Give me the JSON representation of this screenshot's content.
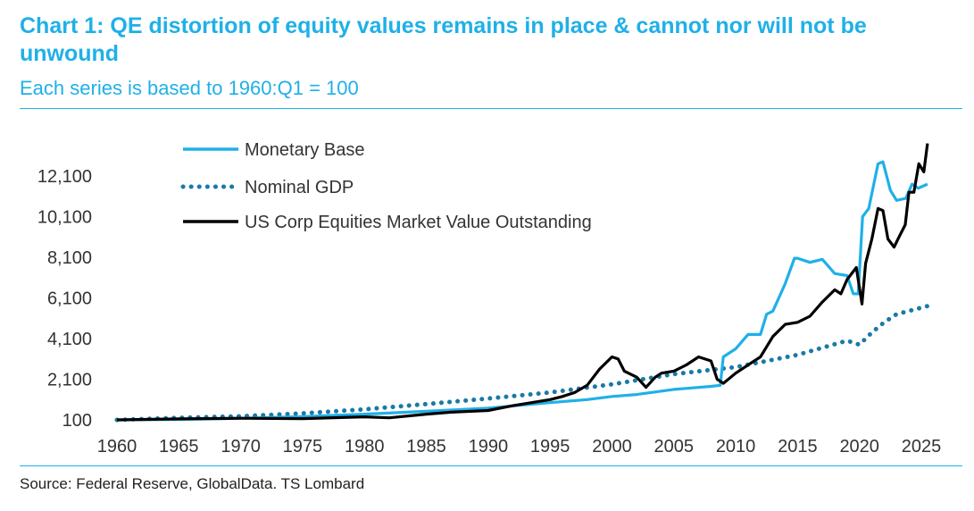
{
  "title": "Chart 1: QE distortion of equity values remains in place & cannot nor will not be unwound",
  "subtitle": "Each series is based to 1960:Q1 = 100",
  "source": "Source: Federal Reserve, GlobalData. TS Lombard",
  "colors": {
    "monetary_base": "#1fb0e8",
    "nominal_gdp": "#1a7aa6",
    "equities": "#000000"
  },
  "chart_data": {
    "type": "line",
    "title": "Chart 1: QE distortion of equity values remains in place & cannot nor will not be unwound",
    "subtitle": "Each series is based to 1960:Q1 = 100",
    "xlabel": "",
    "ylabel": "",
    "xlim": [
      1960,
      2025
    ],
    "ylim": [
      100,
      12100
    ],
    "x_ticks": [
      1960,
      1965,
      1970,
      1975,
      1980,
      1985,
      1990,
      1995,
      2000,
      2005,
      2010,
      2015,
      2020,
      2025
    ],
    "y_ticks": [
      100,
      2100,
      4100,
      6100,
      8100,
      10100,
      12100
    ],
    "x_tick_labels": [
      "1960",
      "1965",
      "1970",
      "1975",
      "1980",
      "1985",
      "1990",
      "1995",
      "2000",
      "2005",
      "2010",
      "2015",
      "2020",
      "2025"
    ],
    "y_tick_labels": [
      "100",
      "2,100",
      "4,100",
      "6,100",
      "8,100",
      "10,100",
      "12,100"
    ],
    "legend_position": "top-left",
    "series": [
      {
        "name": "Monetary Base",
        "style": "solid",
        "points": [
          [
            1960,
            100
          ],
          [
            1965,
            120
          ],
          [
            1970,
            180
          ],
          [
            1975,
            260
          ],
          [
            1980,
            380
          ],
          [
            1985,
            520
          ],
          [
            1990,
            680
          ],
          [
            1995,
            950
          ],
          [
            1998,
            1100
          ],
          [
            2000,
            1250
          ],
          [
            2002,
            1350
          ],
          [
            2005,
            1600
          ],
          [
            2008,
            1750
          ],
          [
            2008.75,
            1800
          ],
          [
            2009,
            3200
          ],
          [
            2010,
            3600
          ],
          [
            2011,
            4300
          ],
          [
            2012,
            4300
          ],
          [
            2012.5,
            5300
          ],
          [
            2013,
            5450
          ],
          [
            2014,
            6800
          ],
          [
            2014.75,
            8050
          ],
          [
            2015,
            8050
          ],
          [
            2016,
            7850
          ],
          [
            2017,
            8000
          ],
          [
            2018,
            7300
          ],
          [
            2019,
            7200
          ],
          [
            2019.5,
            6300
          ],
          [
            2019.9,
            6300
          ],
          [
            2020.25,
            10100
          ],
          [
            2020.75,
            10500
          ],
          [
            2021.5,
            12700
          ],
          [
            2021.9,
            12800
          ],
          [
            2022.5,
            11400
          ],
          [
            2023,
            10900
          ],
          [
            2023.75,
            11000
          ],
          [
            2024.25,
            11700
          ],
          [
            2024.75,
            11500
          ],
          [
            2025.5,
            11700
          ]
        ]
      },
      {
        "name": "Nominal GDP",
        "style": "dotted",
        "points": [
          [
            1960,
            100
          ],
          [
            1965,
            200
          ],
          [
            1970,
            280
          ],
          [
            1975,
            420
          ],
          [
            1980,
            620
          ],
          [
            1985,
            880
          ],
          [
            1990,
            1150
          ],
          [
            1995,
            1450
          ],
          [
            2000,
            1850
          ],
          [
            2005,
            2350
          ],
          [
            2010,
            2700
          ],
          [
            2015,
            3300
          ],
          [
            2019,
            4000
          ],
          [
            2020,
            3800
          ],
          [
            2021,
            4400
          ],
          [
            2022,
            4900
          ],
          [
            2023,
            5300
          ],
          [
            2025.5,
            5700
          ]
        ]
      },
      {
        "name": "US Corp Equities Market Value Outstanding",
        "style": "solid",
        "points": [
          [
            1960,
            100
          ],
          [
            1965,
            150
          ],
          [
            1970,
            180
          ],
          [
            1975,
            160
          ],
          [
            1980,
            250
          ],
          [
            1982,
            200
          ],
          [
            1985,
            380
          ],
          [
            1987,
            480
          ],
          [
            1990,
            560
          ],
          [
            1992,
            800
          ],
          [
            1995,
            1100
          ],
          [
            1996,
            1250
          ],
          [
            1997,
            1450
          ],
          [
            1998,
            1800
          ],
          [
            1999,
            2600
          ],
          [
            2000,
            3200
          ],
          [
            2000.5,
            3100
          ],
          [
            2001,
            2500
          ],
          [
            2002,
            2200
          ],
          [
            2002.75,
            1700
          ],
          [
            2003.5,
            2200
          ],
          [
            2004,
            2400
          ],
          [
            2005,
            2500
          ],
          [
            2006,
            2800
          ],
          [
            2007,
            3200
          ],
          [
            2008,
            3000
          ],
          [
            2008.5,
            2100
          ],
          [
            2009,
            1900
          ],
          [
            2010,
            2400
          ],
          [
            2011,
            2800
          ],
          [
            2012,
            3200
          ],
          [
            2013,
            4200
          ],
          [
            2014,
            4800
          ],
          [
            2015,
            4900
          ],
          [
            2016,
            5200
          ],
          [
            2017,
            5900
          ],
          [
            2018,
            6500
          ],
          [
            2018.5,
            6300
          ],
          [
            2019,
            7000
          ],
          [
            2019.75,
            7600
          ],
          [
            2020.2,
            5800
          ],
          [
            2020.5,
            7800
          ],
          [
            2021,
            9000
          ],
          [
            2021.5,
            10500
          ],
          [
            2021.9,
            10400
          ],
          [
            2022.3,
            9000
          ],
          [
            2022.8,
            8600
          ],
          [
            2023.2,
            9100
          ],
          [
            2023.7,
            9700
          ],
          [
            2024,
            11300
          ],
          [
            2024.4,
            11300
          ],
          [
            2024.8,
            12700
          ],
          [
            2025.2,
            12300
          ],
          [
            2025.5,
            13700
          ]
        ]
      }
    ]
  }
}
